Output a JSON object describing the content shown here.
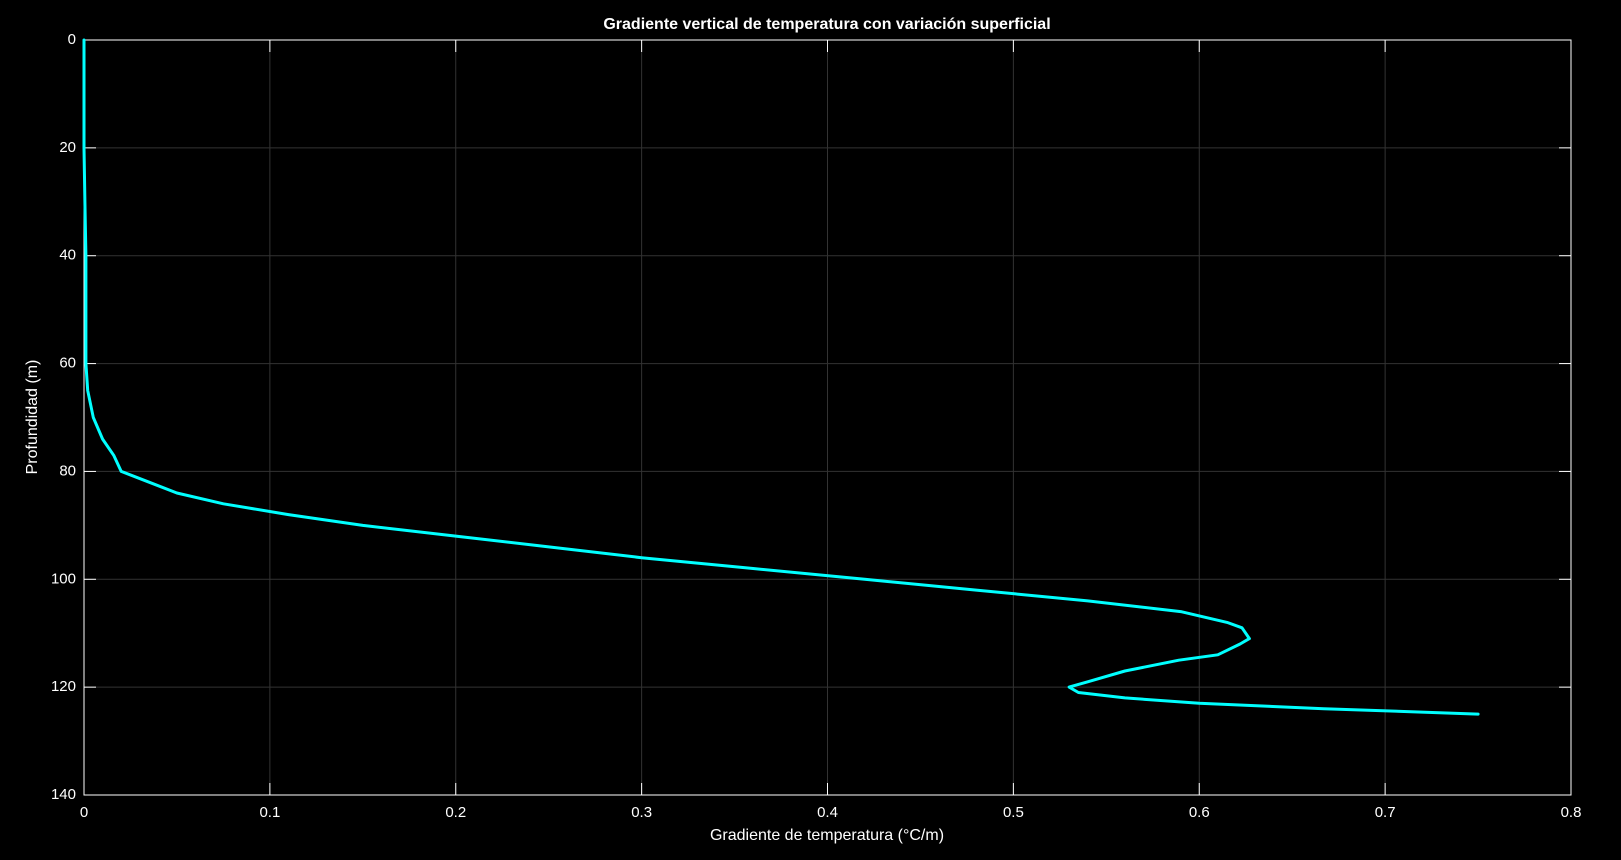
{
  "chart_data": {
    "type": "line",
    "title": "Gradiente vertical de temperatura con variación superficial",
    "xlabel": "Gradiente de temperatura (°C/m)",
    "ylabel": "Profundidad (m)",
    "x": [
      0,
      0,
      0,
      0.0005,
      0.001,
      0.001,
      0.001,
      0.002,
      0.005,
      0.01,
      0.016,
      0.02,
      0.035,
      0.05,
      0.075,
      0.11,
      0.15,
      0.2,
      0.25,
      0.3,
      0.36,
      0.42,
      0.48,
      0.54,
      0.59,
      0.615,
      0.623,
      0.627,
      0.622,
      0.61,
      0.589,
      0.56,
      0.54,
      0.53,
      0.535,
      0.56,
      0.6,
      0.667,
      0.75
    ],
    "series": [
      {
        "color": "#00ffff",
        "values": [
          0,
          10,
          20,
          30,
          40,
          50,
          60,
          65,
          70,
          74,
          77,
          80,
          82,
          84,
          86,
          88,
          90,
          92,
          94,
          96,
          98,
          100,
          102,
          104,
          106,
          108,
          109,
          111,
          112,
          114,
          115,
          117,
          119,
          120,
          121,
          122,
          123,
          124,
          125
        ]
      }
    ],
    "xlim": [
      0,
      0.8
    ],
    "xticks": [
      0,
      0.1,
      0.2,
      0.3,
      0.4,
      0.5,
      0.6,
      0.7,
      0.8
    ],
    "ylim": [
      0,
      140
    ],
    "yticks": [
      0,
      20,
      40,
      60,
      80,
      100,
      120,
      140
    ],
    "y_reversed": true,
    "grid": true
  }
}
